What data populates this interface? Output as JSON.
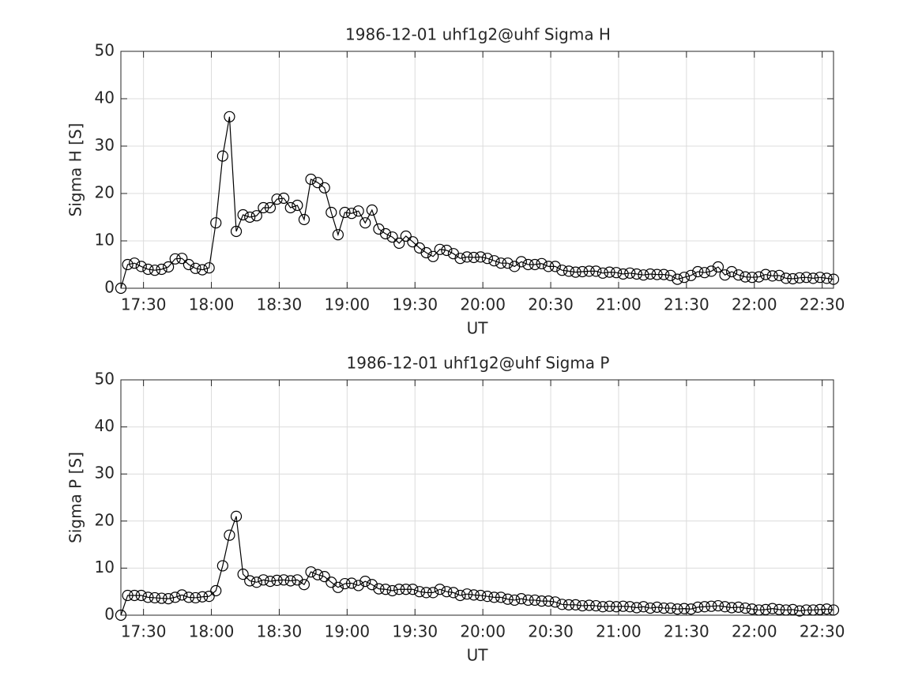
{
  "chart_data": [
    {
      "type": "line",
      "title": "1986-12-01  uhf1g2@uhf Sigma H",
      "xlabel": "UT",
      "ylabel": "Sigma H [S]",
      "color": "#000000",
      "grid": true,
      "x": [
        "17:20",
        "17:23",
        "17:26",
        "17:29",
        "17:32",
        "17:35",
        "17:38",
        "17:41",
        "17:44",
        "17:47",
        "17:50",
        "17:53",
        "17:56",
        "17:59",
        "18:02",
        "18:05",
        "18:08",
        "18:11",
        "18:14",
        "18:17",
        "18:20",
        "18:23",
        "18:26",
        "18:29",
        "18:32",
        "18:35",
        "18:38",
        "18:41",
        "18:44",
        "18:47",
        "18:50",
        "18:53",
        "18:56",
        "18:59",
        "19:02",
        "19:05",
        "19:08",
        "19:11",
        "19:14",
        "19:17",
        "19:20",
        "19:23",
        "19:26",
        "19:29",
        "19:32",
        "19:35",
        "19:38",
        "19:41",
        "19:44",
        "19:47",
        "19:50",
        "19:53",
        "19:56",
        "19:59",
        "20:02",
        "20:05",
        "20:08",
        "20:11",
        "20:14",
        "20:17",
        "20:20",
        "20:23",
        "20:26",
        "20:29",
        "20:32",
        "20:35",
        "20:38",
        "20:41",
        "20:44",
        "20:47",
        "20:50",
        "20:53",
        "20:56",
        "20:59",
        "21:02",
        "21:05",
        "21:08",
        "21:11",
        "21:14",
        "21:17",
        "21:20",
        "21:23",
        "21:26",
        "21:29",
        "21:32",
        "21:35",
        "21:38",
        "21:41",
        "21:44",
        "21:47",
        "21:50",
        "21:53",
        "21:56",
        "21:59",
        "22:02",
        "22:05",
        "22:08",
        "22:11",
        "22:14",
        "22:17",
        "22:20",
        "22:23",
        "22:26",
        "22:29",
        "22:32",
        "22:35"
      ],
      "values": [
        0,
        5.0,
        5.3,
        4.6,
        4.0,
        3.8,
        4.0,
        4.5,
        6.2,
        6.3,
        5.0,
        4.2,
        3.9,
        4.3,
        13.8,
        27.9,
        36.2,
        12,
        15.5,
        15,
        15.3,
        17,
        17,
        18.8,
        19,
        17,
        17.5,
        14.5,
        23,
        22.3,
        21.2,
        16,
        11.3,
        16,
        15.8,
        16.3,
        13.8,
        16.5,
        12.5,
        11.5,
        10.8,
        9.5,
        11,
        9.8,
        8.5,
        7.5,
        6.7,
        8.2,
        8,
        7.3,
        6.3,
        6.6,
        6.5,
        6.6,
        6.3,
        5.8,
        5.3,
        5.3,
        4.6,
        5.6,
        5.0,
        5.0,
        5.2,
        4.6,
        4.6,
        3.8,
        3.6,
        3.4,
        3.5,
        3.6,
        3.6,
        3.2,
        3.4,
        3.3,
        3.0,
        3.2,
        3.0,
        2.8,
        3.0,
        2.9,
        2.9,
        2.7,
        1.9,
        2.3,
        2.7,
        3.5,
        3.3,
        3.6,
        4.5,
        2.8,
        3.5,
        2.8,
        2.4,
        2.3,
        2.4,
        2.9,
        2.6,
        2.7,
        2.1,
        2.0,
        2.2,
        2.3,
        2.1,
        2.3,
        2.1,
        1.9
      ],
      "xlim": [
        "17:20",
        "22:35"
      ],
      "xticks": [
        "17:30",
        "18:00",
        "18:30",
        "19:00",
        "19:30",
        "20:00",
        "20:30",
        "21:00",
        "21:30",
        "22:00",
        "22:30"
      ],
      "ylim": [
        0,
        50
      ],
      "yticks": [
        0,
        10,
        20,
        30,
        40,
        50
      ]
    },
    {
      "type": "line",
      "title": "1986-12-01  uhf1g2@uhf Sigma P",
      "xlabel": "UT",
      "ylabel": "Sigma P [S]",
      "color": "#000000",
      "grid": true,
      "x": [
        "17:20",
        "17:23",
        "17:26",
        "17:29",
        "17:32",
        "17:35",
        "17:38",
        "17:41",
        "17:44",
        "17:47",
        "17:50",
        "17:53",
        "17:56",
        "17:59",
        "18:02",
        "18:05",
        "18:08",
        "18:11",
        "18:14",
        "18:17",
        "18:20",
        "18:23",
        "18:26",
        "18:29",
        "18:32",
        "18:35",
        "18:38",
        "18:41",
        "18:44",
        "18:47",
        "18:50",
        "18:53",
        "18:56",
        "18:59",
        "19:02",
        "19:05",
        "19:08",
        "19:11",
        "19:14",
        "19:17",
        "19:20",
        "19:23",
        "19:26",
        "19:29",
        "19:32",
        "19:35",
        "19:38",
        "19:41",
        "19:44",
        "19:47",
        "19:50",
        "19:53",
        "19:56",
        "19:59",
        "20:02",
        "20:05",
        "20:08",
        "20:11",
        "20:14",
        "20:17",
        "20:20",
        "20:23",
        "20:26",
        "20:29",
        "20:32",
        "20:35",
        "20:38",
        "20:41",
        "20:44",
        "20:47",
        "20:50",
        "20:53",
        "20:56",
        "20:59",
        "21:02",
        "21:05",
        "21:08",
        "21:11",
        "21:14",
        "21:17",
        "21:20",
        "21:23",
        "21:26",
        "21:29",
        "21:32",
        "21:35",
        "21:38",
        "21:41",
        "21:44",
        "21:47",
        "21:50",
        "21:53",
        "21:56",
        "21:59",
        "22:02",
        "22:05",
        "22:08",
        "22:11",
        "22:14",
        "22:17",
        "22:20",
        "22:23",
        "22:26",
        "22:29",
        "22:32",
        "22:35"
      ],
      "values": [
        0,
        4.2,
        4.2,
        4.2,
        3.8,
        3.7,
        3.6,
        3.5,
        3.8,
        4.3,
        3.8,
        3.7,
        3.9,
        4.0,
        5.2,
        10.5,
        17,
        21,
        8.7,
        7.3,
        7.0,
        7.5,
        7.2,
        7.4,
        7.5,
        7.3,
        7.5,
        6.5,
        9.2,
        8.6,
        8.2,
        7.0,
        5.9,
        6.7,
        6.8,
        6.3,
        7.2,
        6.5,
        5.6,
        5.5,
        5.2,
        5.5,
        5.5,
        5.5,
        5.0,
        4.8,
        4.8,
        5.5,
        5.0,
        4.8,
        4.2,
        4.5,
        4.3,
        4.2,
        4.0,
        3.8,
        3.8,
        3.4,
        3.2,
        3.5,
        3.2,
        3.2,
        3.0,
        3.0,
        2.8,
        2.3,
        2.2,
        2.2,
        2.0,
        2.1,
        2.0,
        1.8,
        1.9,
        1.8,
        1.9,
        1.8,
        1.6,
        1.8,
        1.5,
        1.7,
        1.5,
        1.5,
        1.3,
        1.4,
        1.3,
        1.7,
        1.8,
        1.9,
        2.0,
        1.8,
        1.6,
        1.7,
        1.5,
        1.3,
        1.1,
        1.2,
        1.4,
        1.2,
        1.1,
        1.2,
        0.9,
        1.1,
        1.1,
        1.2,
        1.3,
        1.1
      ],
      "xlim": [
        "17:20",
        "22:35"
      ],
      "xticks": [
        "17:30",
        "18:00",
        "18:30",
        "19:00",
        "19:30",
        "20:00",
        "20:30",
        "21:00",
        "21:30",
        "22:00",
        "22:30"
      ],
      "ylim": [
        0,
        50
      ],
      "yticks": [
        0,
        10,
        20,
        30,
        40,
        50
      ]
    }
  ]
}
